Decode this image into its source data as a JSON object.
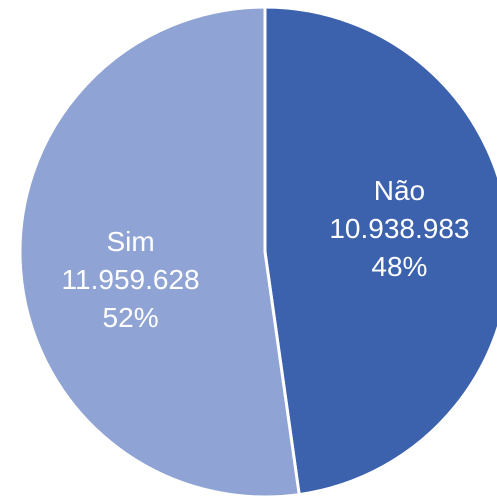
{
  "chart_data": {
    "type": "pie",
    "categories": [
      "Não",
      "Sim"
    ],
    "values": [
      10938983,
      11959628
    ],
    "value_labels": [
      "10.938.983",
      "11.959.628"
    ],
    "percentages": [
      48,
      52
    ],
    "percent_labels": [
      "48%",
      "52%"
    ],
    "colors": [
      "#3c62ad",
      "#8fa3d4"
    ]
  }
}
